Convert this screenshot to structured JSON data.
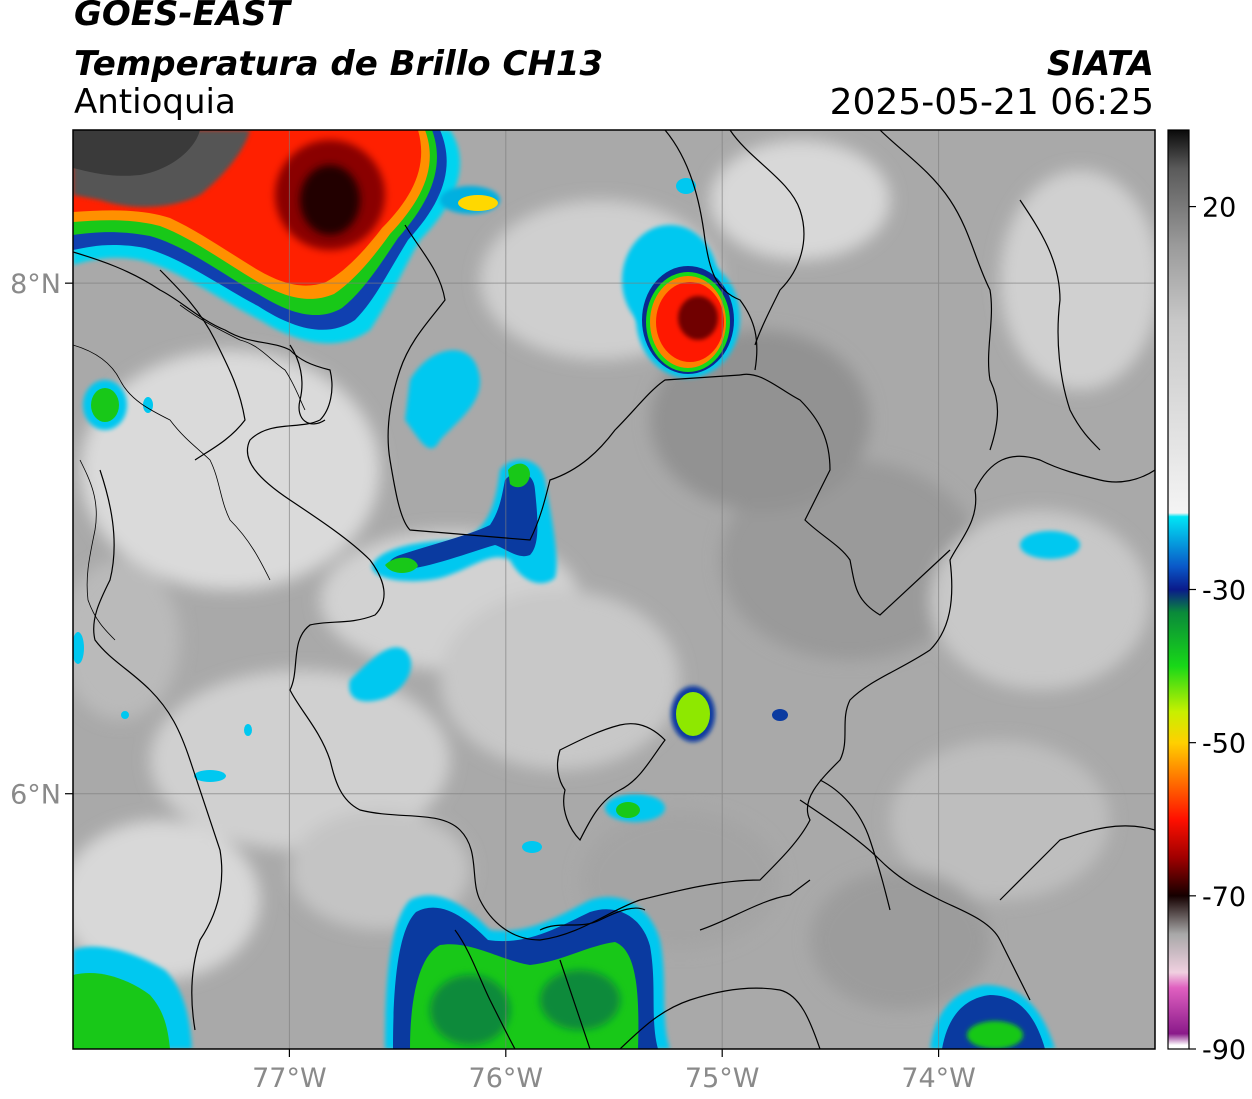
{
  "header": {
    "satellite": "GOES-EAST",
    "product": "Temperatura de Brillo CH13",
    "region": "Antioquia",
    "agency": "SIATA",
    "datetime": "2025-05-21 06:25"
  },
  "map": {
    "lon_range": [
      -78.0,
      -73.0
    ],
    "lat_range": [
      5.0,
      8.6
    ],
    "lon_ticks": [
      {
        "value": -77,
        "label": "77°W"
      },
      {
        "value": -76,
        "label": "76°W"
      },
      {
        "value": -75,
        "label": "75°W"
      },
      {
        "value": -74,
        "label": "74°W"
      }
    ],
    "lat_ticks": [
      {
        "value": 8,
        "label": "8°N"
      },
      {
        "value": 6,
        "label": "6°N"
      }
    ],
    "grid": true
  },
  "colorbar": {
    "range": [
      -90,
      30
    ],
    "ticks": [
      {
        "value": 20,
        "label": "20"
      },
      {
        "value": -30,
        "label": "-30"
      },
      {
        "value": -50,
        "label": "-50"
      },
      {
        "value": -70,
        "label": "-70"
      },
      {
        "value": -90,
        "label": "-90"
      }
    ],
    "stops": [
      {
        "value": 30,
        "color": "#0a0a0a"
      },
      {
        "value": 25,
        "color": "#5a5a5a"
      },
      {
        "value": 15,
        "color": "#9a9a9a"
      },
      {
        "value": 5,
        "color": "#c8c8c8"
      },
      {
        "value": -20,
        "color": "#f4f4f4"
      },
      {
        "value": -20.5,
        "color": "#00e5f5"
      },
      {
        "value": -27,
        "color": "#0a58c8"
      },
      {
        "value": -30,
        "color": "#0a1a8a"
      },
      {
        "value": -33,
        "color": "#0a8a3a"
      },
      {
        "value": -40,
        "color": "#18d818"
      },
      {
        "value": -46,
        "color": "#c8f000"
      },
      {
        "value": -50,
        "color": "#ffd000"
      },
      {
        "value": -55,
        "color": "#ff7000"
      },
      {
        "value": -60,
        "color": "#ff1000"
      },
      {
        "value": -65,
        "color": "#a00000"
      },
      {
        "value": -70,
        "color": "#150000"
      },
      {
        "value": -75,
        "color": "#a8a8a8"
      },
      {
        "value": -80,
        "color": "#f0d0e0"
      },
      {
        "value": -82,
        "color": "#e060c0"
      },
      {
        "value": -88,
        "color": "#8a1a8a"
      },
      {
        "value": -89.5,
        "color": "#ffffff"
      }
    ]
  }
}
